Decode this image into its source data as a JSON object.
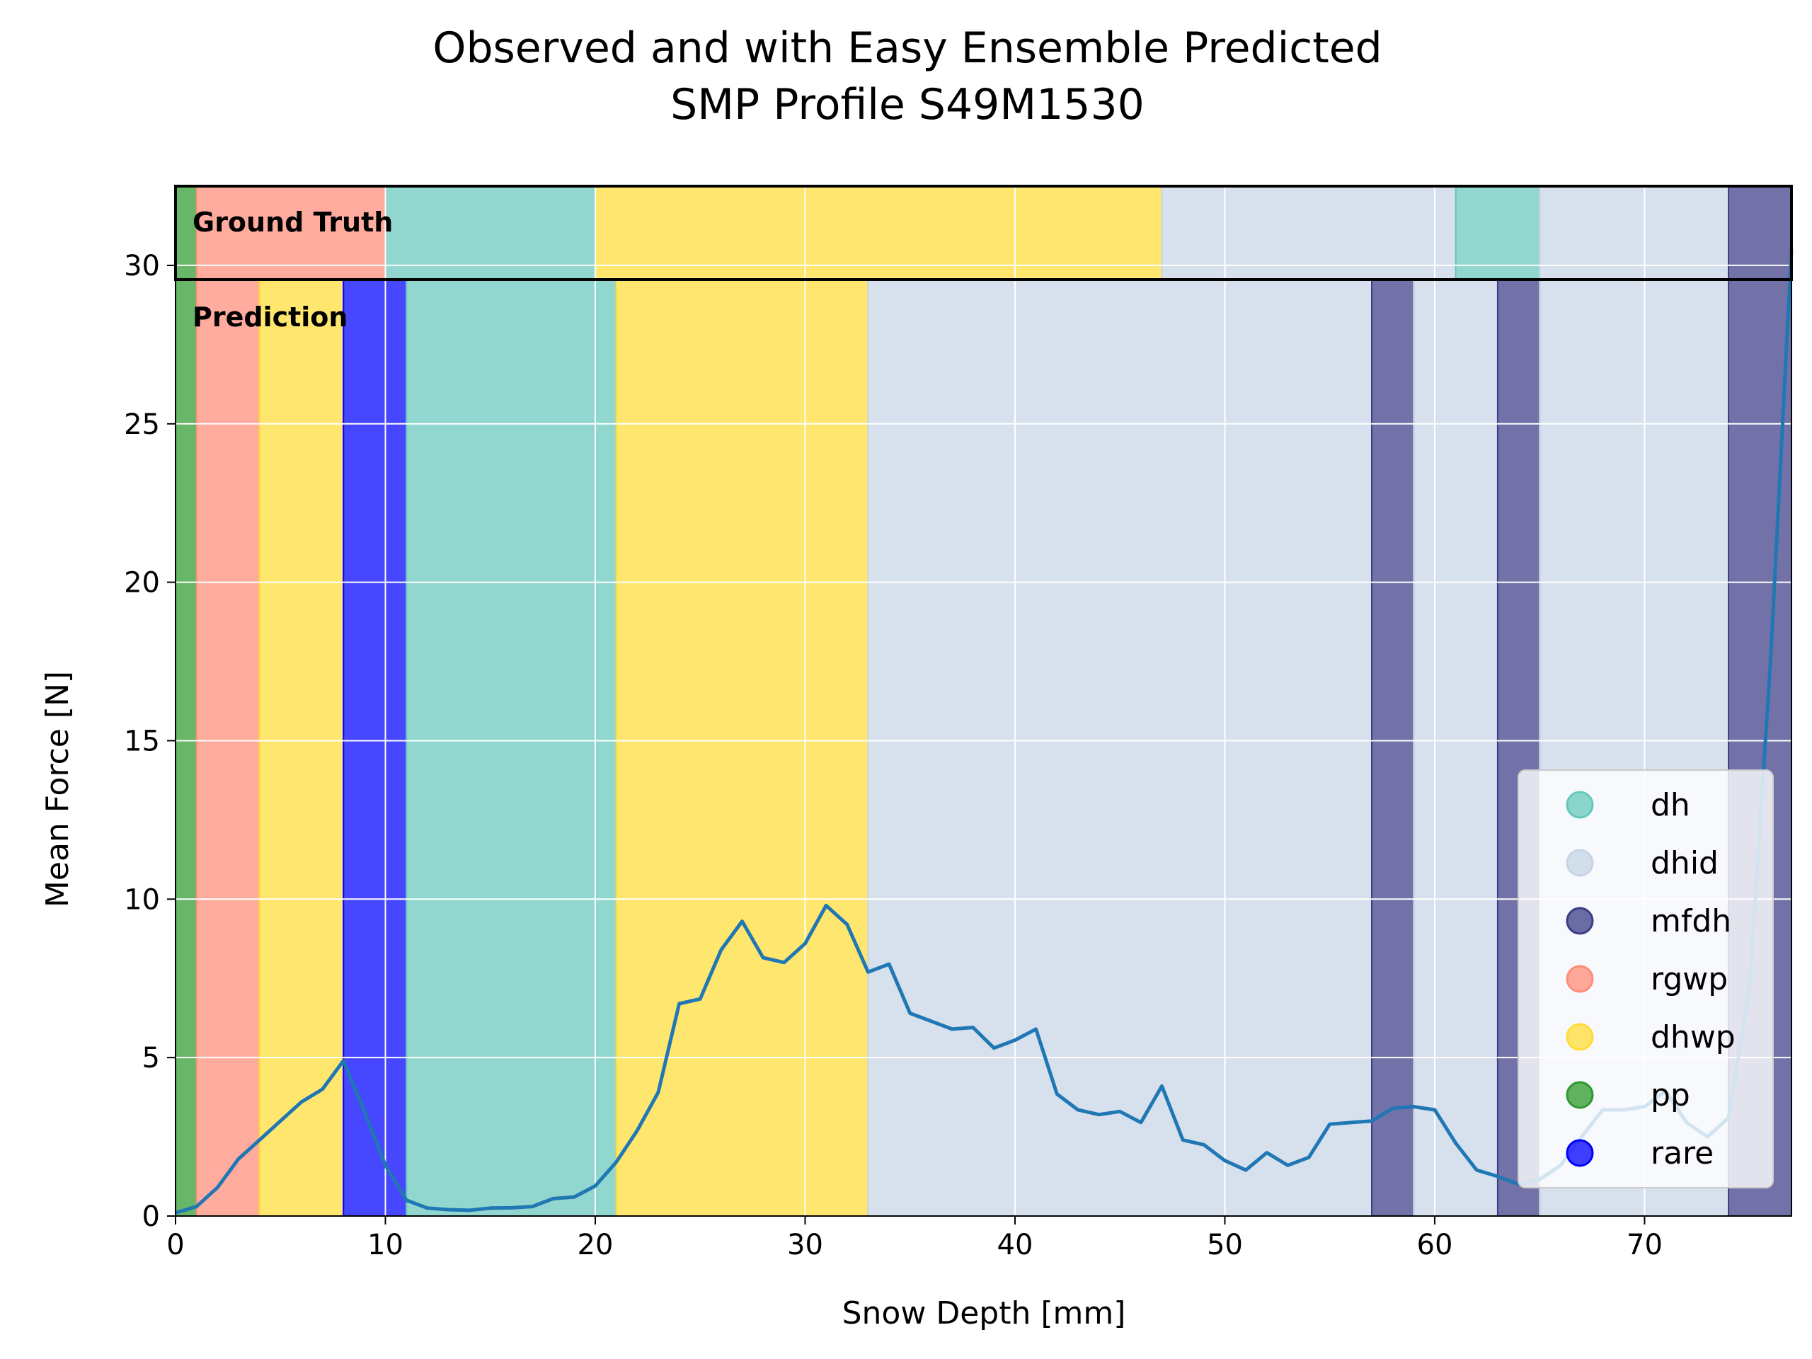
{
  "chart_data": {
    "type": "line",
    "title": [
      "Observed and with Easy Ensemble Predicted",
      "SMP Profile S49M1530"
    ],
    "xlabel": "Snow Depth [mm]",
    "ylabel": "Mean Force [N]",
    "xlim": [
      0,
      77
    ],
    "ylim": [
      0,
      32.5
    ],
    "xticks": [
      0,
      10,
      20,
      30,
      40,
      50,
      60,
      70
    ],
    "yticks": [
      0,
      5,
      10,
      15,
      20,
      25,
      30
    ],
    "grid": true,
    "legend_position": "lower-right",
    "classes": [
      {
        "name": "dh",
        "color": "#66c8bc"
      },
      {
        "name": "dhid",
        "color": "#c7d4e6"
      },
      {
        "name": "mfdh",
        "color": "#3c3c87"
      },
      {
        "name": "rgwp",
        "color": "#ff8c78"
      },
      {
        "name": "dhwp",
        "color": "#ffdc37"
      },
      {
        "name": "pp",
        "color": "#2e9a2e"
      },
      {
        "name": "rare",
        "color": "#0000ff"
      }
    ],
    "ground_truth_label": "Ground Truth",
    "prediction_label": "Prediction",
    "ground_truth": [
      {
        "start": 0,
        "end": 1,
        "class": "pp"
      },
      {
        "start": 1,
        "end": 10,
        "class": "rgwp"
      },
      {
        "start": 10,
        "end": 20,
        "class": "dh"
      },
      {
        "start": 20,
        "end": 47,
        "class": "dhwp"
      },
      {
        "start": 47,
        "end": 61,
        "class": "dhid"
      },
      {
        "start": 61,
        "end": 65,
        "class": "dh"
      },
      {
        "start": 65,
        "end": 74,
        "class": "dhid"
      },
      {
        "start": 74,
        "end": 77,
        "class": "mfdh"
      }
    ],
    "prediction": [
      {
        "start": 0,
        "end": 1,
        "class": "pp"
      },
      {
        "start": 1,
        "end": 4,
        "class": "rgwp"
      },
      {
        "start": 4,
        "end": 8,
        "class": "dhwp"
      },
      {
        "start": 8,
        "end": 11,
        "class": "rare"
      },
      {
        "start": 11,
        "end": 21,
        "class": "dh"
      },
      {
        "start": 21,
        "end": 33,
        "class": "dhwp"
      },
      {
        "start": 33,
        "end": 57,
        "class": "dhid"
      },
      {
        "start": 57,
        "end": 59,
        "class": "mfdh"
      },
      {
        "start": 59,
        "end": 63,
        "class": "dhid"
      },
      {
        "start": 63,
        "end": 65,
        "class": "mfdh"
      },
      {
        "start": 65,
        "end": 74,
        "class": "dhid"
      },
      {
        "start": 74,
        "end": 77,
        "class": "mfdh"
      }
    ],
    "series": [
      {
        "color": "#1f77b4",
        "x": [
          0,
          1,
          2,
          3,
          4,
          5,
          6,
          7,
          8,
          9,
          10,
          11,
          12,
          13,
          14,
          15,
          16,
          17,
          18,
          19,
          20,
          21,
          22,
          23,
          24,
          25,
          26,
          27,
          28,
          29,
          30,
          31,
          32,
          33,
          34,
          35,
          36,
          37,
          38,
          39,
          40,
          41,
          42,
          43,
          44,
          45,
          46,
          47,
          48,
          49,
          50,
          51,
          52,
          53,
          54,
          55,
          56,
          57,
          58,
          59,
          60,
          61,
          62,
          63,
          64,
          65,
          66,
          67,
          68,
          69,
          70,
          71,
          72,
          73,
          74,
          75,
          76,
          77
        ],
        "y": [
          0.1,
          0.3,
          0.9,
          1.8,
          2.4,
          3.0,
          3.6,
          4.0,
          4.9,
          3.3,
          1.6,
          0.5,
          0.25,
          0.2,
          0.18,
          0.25,
          0.26,
          0.3,
          0.55,
          0.6,
          0.95,
          1.7,
          2.7,
          3.9,
          6.7,
          6.85,
          8.4,
          9.3,
          8.15,
          8.0,
          8.6,
          9.8,
          9.2,
          7.7,
          7.95,
          6.4,
          6.15,
          5.9,
          5.95,
          5.3,
          5.55,
          5.9,
          3.85,
          3.35,
          3.2,
          3.3,
          2.95,
          4.1,
          2.4,
          2.25,
          1.75,
          1.45,
          2.0,
          1.6,
          1.85,
          2.9,
          2.95,
          3.0,
          3.4,
          3.45,
          3.35,
          2.3,
          1.45,
          1.25,
          1.0,
          1.15,
          1.6,
          2.5,
          3.35,
          3.35,
          3.45,
          3.95,
          2.95,
          2.5,
          3.1,
          7.2,
          17.5,
          30.5
        ]
      }
    ]
  }
}
